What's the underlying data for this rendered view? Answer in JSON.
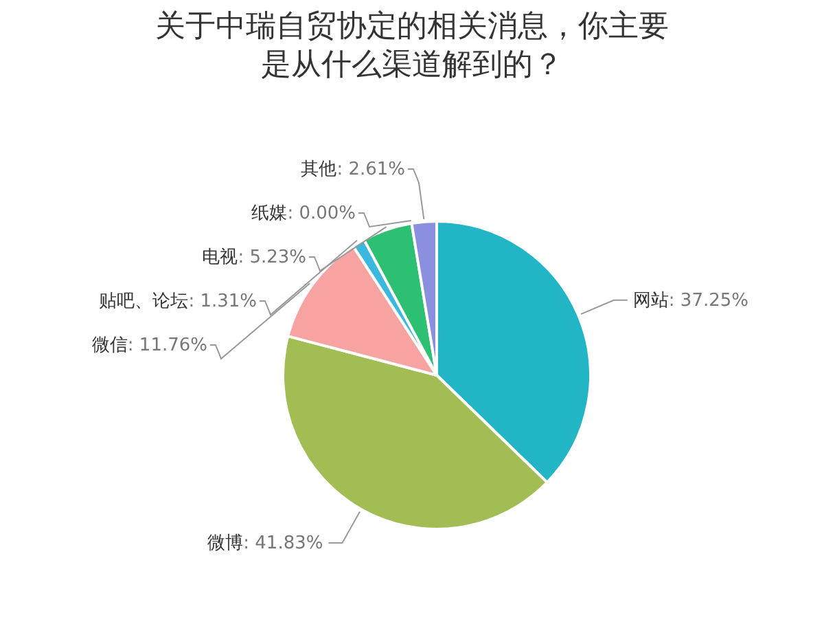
{
  "chart_data": {
    "type": "pie",
    "title": "关于中瑞自贸协定的相关消息，你主要是从什么渠道解到的？",
    "categories": [
      "网站",
      "微博",
      "微信",
      "贴吧、论坛",
      "电视",
      "纸媒",
      "其他"
    ],
    "values": [
      37.25,
      41.83,
      11.76,
      1.31,
      5.23,
      0.0,
      2.61
    ],
    "colors": [
      "#22b5c6",
      "#a3bd55",
      "#f6a3a1",
      "#3bb8e0",
      "#2dbf72",
      "#999999",
      "#8b8fe0"
    ],
    "value_labels": [
      ": 37.25%",
      ": 41.83%",
      ": 11.76%",
      ": 1.31%",
      ": 5.23%",
      ": 0.00%",
      ": 2.61%"
    ]
  }
}
